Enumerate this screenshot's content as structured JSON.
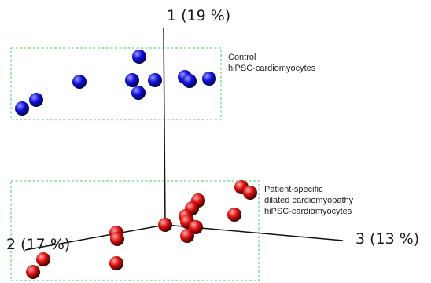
{
  "chart_data": {
    "type": "scatter",
    "title": "",
    "axes": [
      {
        "label": "1 (19 %)"
      },
      {
        "label": "2 (17 %)"
      },
      {
        "label": "3 (13 %)"
      }
    ],
    "groups": [
      {
        "name_lines": [
          "Control",
          "hiPSC-cardiomyocytes"
        ],
        "color": "#1010dd",
        "highlight": "#9a9aff",
        "points": [
          [
            28,
            138
          ],
          [
            46,
            127
          ],
          [
            101,
            104
          ],
          [
            177,
            72
          ],
          [
            168,
            102
          ],
          [
            197,
            102
          ],
          [
            176,
            118
          ],
          [
            235,
            98
          ],
          [
            241,
            103
          ],
          [
            266,
            100
          ]
        ]
      },
      {
        "name_lines": [
          "Patient-specific",
          "dilated cardiomyopathy",
          "hiPSC-cardiomyocytes"
        ],
        "color": "#dd1010",
        "highlight": "#ffaaaa",
        "points": [
          [
            307,
            238
          ],
          [
            318,
            245
          ],
          [
            252,
            255
          ],
          [
            244,
            265
          ],
          [
            236,
            275
          ],
          [
            238,
            282
          ],
          [
            249,
            289
          ],
          [
            238,
            300
          ],
          [
            298,
            273
          ],
          [
            210,
            286
          ],
          [
            148,
            296
          ],
          [
            149,
            304
          ],
          [
            148,
            335
          ],
          [
            55,
            330
          ],
          [
            42,
            346
          ]
        ]
      }
    ],
    "grid": false,
    "legend": "none"
  }
}
